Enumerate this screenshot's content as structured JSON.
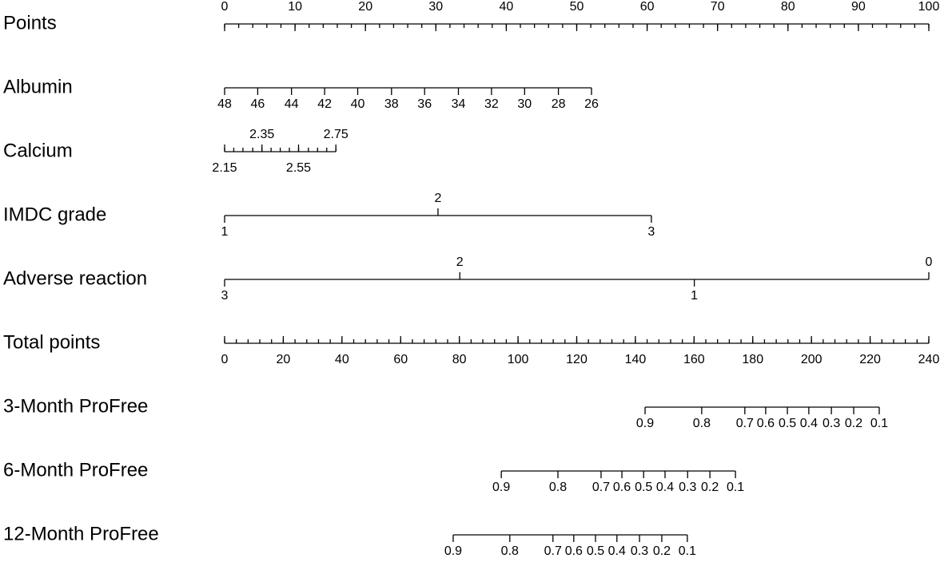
{
  "chart_data": {
    "type": "nomogram",
    "xlim": [
      0,
      100
    ],
    "scales": [
      {
        "label": "Points",
        "labels": "above",
        "ticks": [
          0,
          10,
          20,
          30,
          40,
          50,
          60,
          70,
          80,
          90,
          100
        ],
        "minor_ticks": [
          0,
          2,
          4,
          6,
          8,
          10,
          12,
          14,
          16,
          18,
          20,
          22,
          24,
          26,
          28,
          30,
          32,
          34,
          36,
          38,
          40,
          42,
          44,
          46,
          48,
          50,
          52,
          54,
          56,
          58,
          60,
          62,
          64,
          66,
          68,
          70,
          72,
          74,
          76,
          78,
          80,
          82,
          84,
          86,
          88,
          90,
          92,
          94,
          96,
          98,
          100
        ]
      },
      {
        "label": "Albumin",
        "labels": "below",
        "ticks": [
          {
            "value": 0,
            "label": "48"
          },
          {
            "value": 4.7,
            "label": "46"
          },
          {
            "value": 9.5,
            "label": "44"
          },
          {
            "value": 14.2,
            "label": "42"
          },
          {
            "value": 18.9,
            "label": "40"
          },
          {
            "value": 23.7,
            "label": "38"
          },
          {
            "value": 28.4,
            "label": "36"
          },
          {
            "value": 33.2,
            "label": "34"
          },
          {
            "value": 37.9,
            "label": "32"
          },
          {
            "value": 42.6,
            "label": "30"
          },
          {
            "value": 47.4,
            "label": "28"
          },
          {
            "value": 52.1,
            "label": "26"
          }
        ]
      },
      {
        "label": "Calcium",
        "labels": "alternate",
        "ticks": [
          {
            "value": 0,
            "label": "2.15"
          },
          {
            "value": 5.3,
            "label": "2.35"
          },
          {
            "value": 10.5,
            "label": "2.55"
          },
          {
            "value": 15.8,
            "label": "2.75"
          }
        ],
        "minor_ticks": [
          0,
          1.3,
          2.6,
          4.0,
          5.3,
          6.6,
          7.9,
          9.2,
          10.5,
          11.9,
          13.2,
          14.5,
          15.8
        ]
      },
      {
        "label": "IMDC grade",
        "labels": "alternate",
        "ticks": [
          {
            "value": 0,
            "label": "1"
          },
          {
            "value": 30.3,
            "label": "2"
          },
          {
            "value": 60.6,
            "label": "3"
          }
        ]
      },
      {
        "label": "Adverse reaction",
        "labels": "alternate",
        "ticks": [
          {
            "value": 0,
            "label": "3"
          },
          {
            "value": 33.4,
            "label": "2"
          },
          {
            "value": 66.7,
            "label": "1"
          },
          {
            "value": 100,
            "label": "0"
          }
        ]
      },
      {
        "label": "Total points",
        "labels": "below",
        "xlim": [
          0,
          240
        ],
        "ticks": [
          0,
          20,
          40,
          60,
          80,
          100,
          120,
          140,
          160,
          180,
          200,
          220,
          240
        ],
        "minor_ticks": [
          0,
          4,
          8,
          12,
          16,
          20,
          24,
          28,
          32,
          36,
          40,
          44,
          48,
          52,
          56,
          60,
          64,
          68,
          72,
          76,
          80,
          84,
          88,
          92,
          96,
          100,
          104,
          108,
          112,
          116,
          120,
          124,
          128,
          132,
          136,
          140,
          144,
          148,
          152,
          156,
          160,
          164,
          168,
          172,
          176,
          180,
          184,
          188,
          192,
          196,
          200,
          204,
          208,
          212,
          216,
          220,
          224,
          228,
          232,
          236,
          240
        ]
      },
      {
        "label": "3-Month ProFree",
        "labels": "below",
        "xlim": [
          0,
          240
        ],
        "ticks": [
          {
            "value": 143.3,
            "label": "0.9"
          },
          {
            "value": 162.6,
            "label": "0.8"
          },
          {
            "value": 177.3,
            "label": "0.7"
          },
          {
            "value": 184.4,
            "label": "0.6"
          },
          {
            "value": 191.8,
            "label": "0.5"
          },
          {
            "value": 199.1,
            "label": "0.4"
          },
          {
            "value": 206.8,
            "label": "0.3"
          },
          {
            "value": 214.4,
            "label": "0.2"
          },
          {
            "value": 223.1,
            "label": "0.1"
          }
        ]
      },
      {
        "label": "6-Month ProFree",
        "labels": "below",
        "xlim": [
          0,
          240
        ],
        "ticks": [
          {
            "value": 94.3,
            "label": "0.9"
          },
          {
            "value": 113.6,
            "label": "0.8"
          },
          {
            "value": 128.3,
            "label": "0.7"
          },
          {
            "value": 135.4,
            "label": "0.6"
          },
          {
            "value": 142.8,
            "label": "0.5"
          },
          {
            "value": 150.1,
            "label": "0.4"
          },
          {
            "value": 157.8,
            "label": "0.3"
          },
          {
            "value": 165.4,
            "label": "0.2"
          },
          {
            "value": 174.1,
            "label": "0.1"
          }
        ]
      },
      {
        "label": "12-Month ProFree",
        "labels": "below",
        "xlim": [
          0,
          240
        ],
        "ticks": [
          {
            "value": 77.9,
            "label": "0.9"
          },
          {
            "value": 97.2,
            "label": "0.8"
          },
          {
            "value": 111.9,
            "label": "0.7"
          },
          {
            "value": 119.0,
            "label": "0.6"
          },
          {
            "value": 126.4,
            "label": "0.5"
          },
          {
            "value": 133.7,
            "label": "0.4"
          },
          {
            "value": 141.4,
            "label": "0.3"
          },
          {
            "value": 149.0,
            "label": "0.2"
          },
          {
            "value": 157.7,
            "label": "0.1"
          }
        ]
      }
    ]
  }
}
